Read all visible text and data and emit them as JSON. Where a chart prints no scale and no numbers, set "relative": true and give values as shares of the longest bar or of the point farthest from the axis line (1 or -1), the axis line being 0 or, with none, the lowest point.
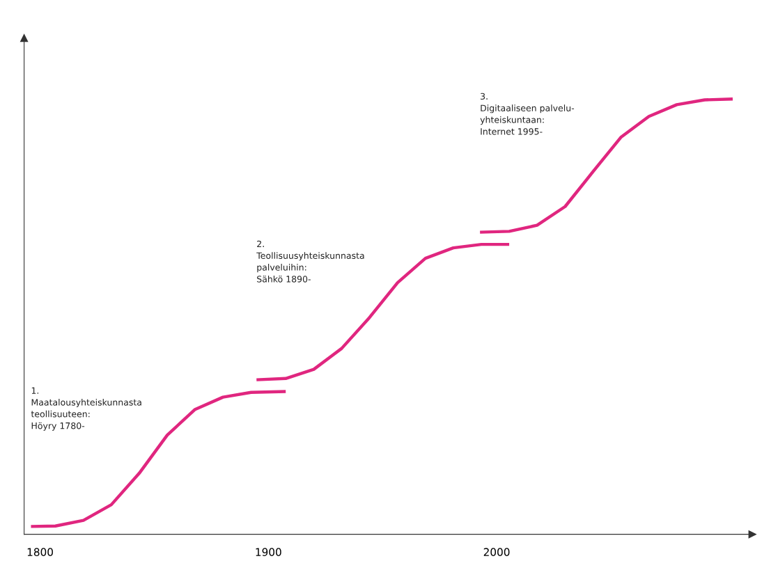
{
  "chart_data": {
    "type": "line",
    "relative": true,
    "xlim": [
      1793,
      2112
    ],
    "xticks": [
      1800,
      1900,
      2000
    ],
    "series": [
      {
        "color": "#e0267f",
        "x": [
          1796.0,
          1806.7,
          1819.0,
          1831.2,
          1843.4,
          1855.7,
          1867.9,
          1880.1,
          1892.4,
          1907.6
        ],
        "values": [
          0.018,
          0.019,
          0.032,
          0.068,
          0.14,
          0.228,
          0.287,
          0.315,
          0.326,
          0.328
        ]
      },
      {
        "color": "#e0267f",
        "x": [
          1894.8,
          1907.6,
          1919.9,
          1932.1,
          1944.3,
          1956.6,
          1968.8,
          1981.0,
          1993.3,
          2005.5
        ],
        "values": [
          0.355,
          0.358,
          0.379,
          0.427,
          0.498,
          0.578,
          0.634,
          0.658,
          0.666,
          0.666
        ]
      },
      {
        "color": "#e0267f",
        "x": [
          1992.7,
          2005.5,
          2017.7,
          2030.0,
          2042.2,
          2054.4,
          2066.7,
          2078.9,
          2091.1,
          2103.4
        ],
        "values": [
          0.694,
          0.696,
          0.71,
          0.753,
          0.833,
          0.912,
          0.96,
          0.987,
          0.998,
          1.0
        ]
      }
    ],
    "annotations": [
      "1.\nMaatalousyhteiskunnasta\nteollisuuteen:\nHöyry 1780-",
      "2.\nTeollisuusyhteiskunnasta\npalveluihin:\nSähkö 1890-",
      "3.\nDigitaaliseen palvelu-\nyhteiskuntaan:\nInternet 1995-"
    ],
    "grid": false,
    "legend": false,
    "marker": "none",
    "line_style": "solid"
  }
}
